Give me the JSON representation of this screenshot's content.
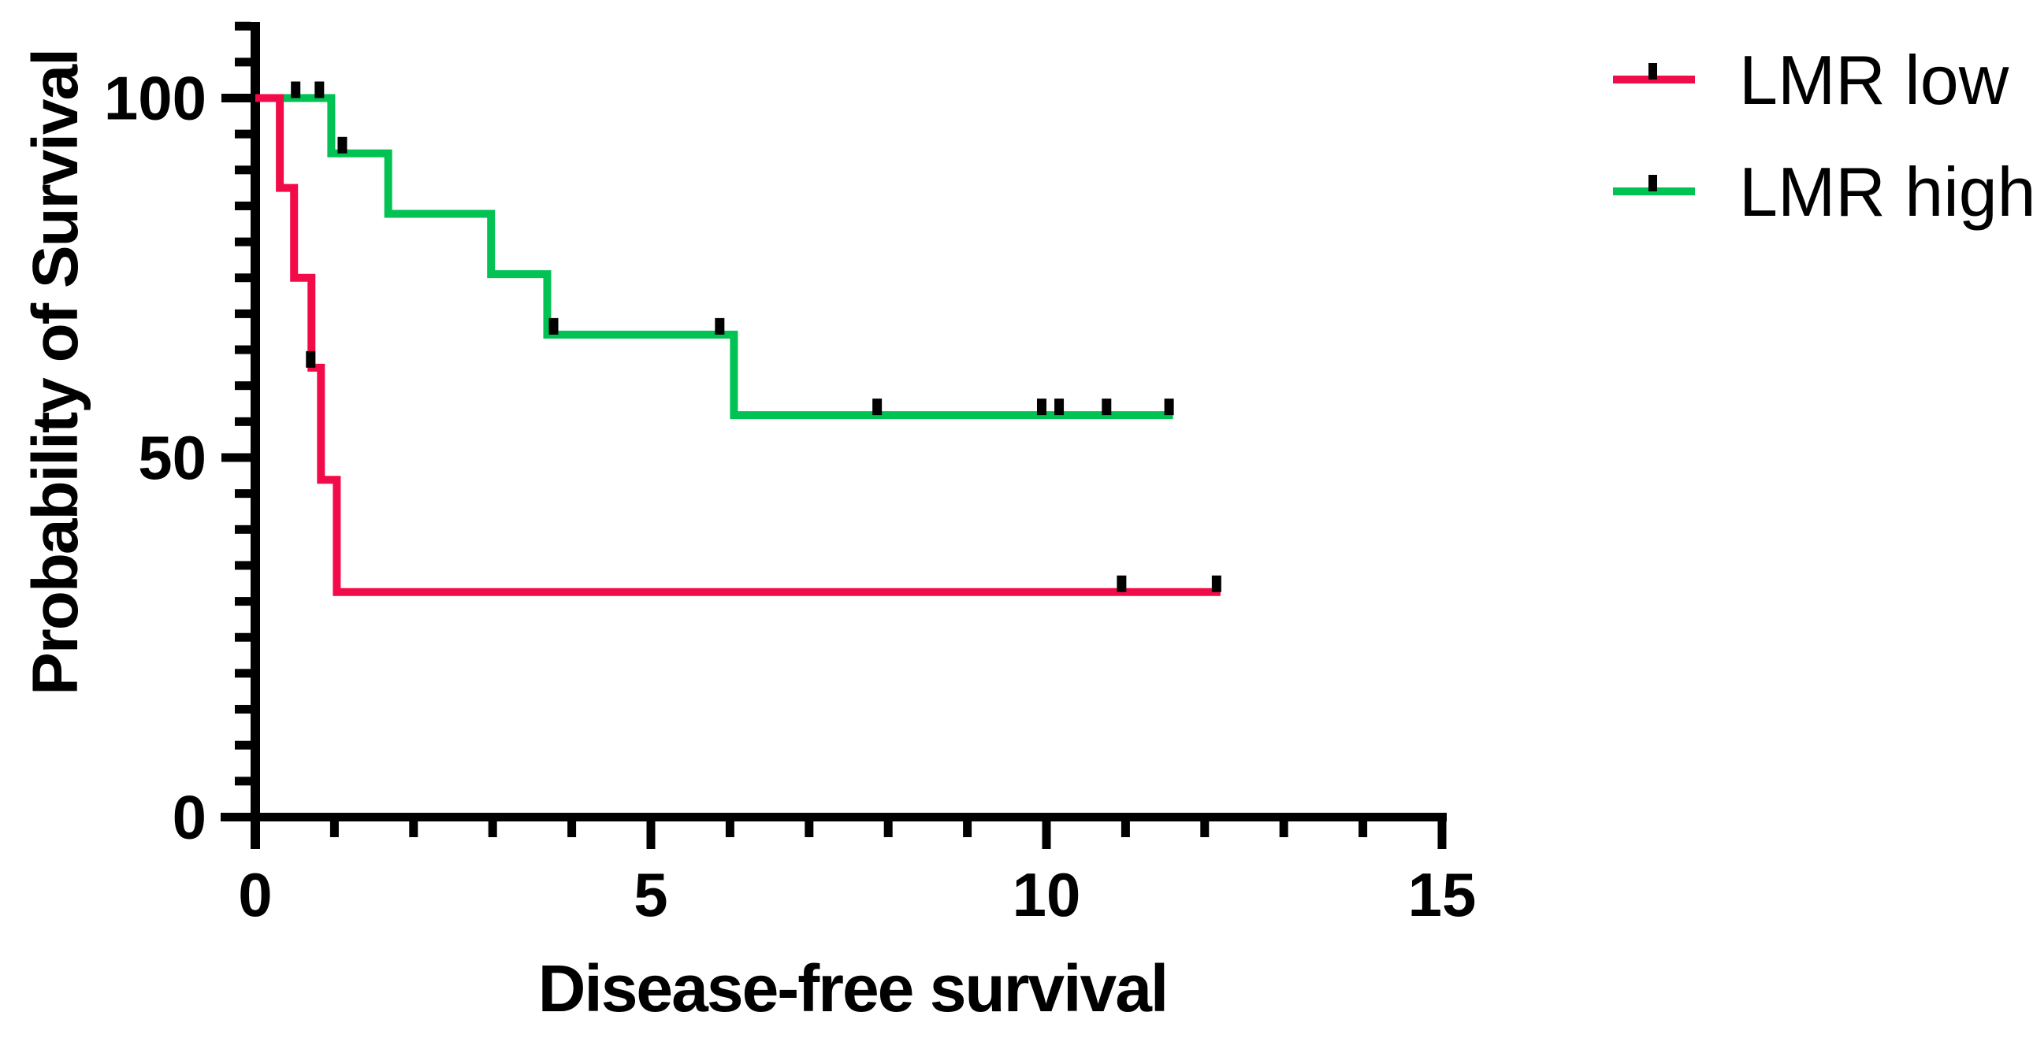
{
  "figure": {
    "background": "#ffffff",
    "y_axis_title": "Probability of Survival",
    "x_axis_title": "Disease-free survival",
    "axis_color": "#000000",
    "censor_mark_color": "#000000",
    "legend": {
      "position": "top-right",
      "items": [
        {
          "label": "LMR low",
          "color": "#f20b49",
          "symbol": "line-with-censor-tick"
        },
        {
          "label": "LMR high",
          "color": "#02c253",
          "symbol": "line-with-censor-tick"
        }
      ]
    }
  },
  "chart_data": {
    "type": "line",
    "subtype": "kaplan-meier-step",
    "title": "",
    "xlabel": "Disease-free survival",
    "ylabel": "Probability of Survival",
    "xlim": [
      0,
      15.1
    ],
    "ylim": [
      0,
      110
    ],
    "x_major_ticks": [
      0,
      5,
      10,
      15
    ],
    "x_minor_tick_interval": 1,
    "y_major_ticks": [
      0,
      50,
      100
    ],
    "y_minor_tick_interval": 5,
    "grid": false,
    "legend_position": "top-right",
    "series": [
      {
        "name": "LMR low",
        "color": "#f20b49",
        "start": {
          "t": 0,
          "p": 100
        },
        "steps": [
          {
            "t": 0.31,
            "p": 87.5
          },
          {
            "t": 0.49,
            "p": 75.0
          },
          {
            "t": 0.71,
            "p": 62.5
          },
          {
            "t": 0.83,
            "p": 46.9
          },
          {
            "t": 1.03,
            "p": 31.3
          }
        ],
        "end_t": 12.2,
        "censor_marks": [
          {
            "t": 0.7,
            "p": 62.5
          },
          {
            "t": 10.95,
            "p": 31.3
          },
          {
            "t": 12.15,
            "p": 31.3
          }
        ]
      },
      {
        "name": "LMR high",
        "color": "#02c253",
        "start": {
          "t": 0,
          "p": 100
        },
        "steps": [
          {
            "t": 0.96,
            "p": 92.3
          },
          {
            "t": 1.68,
            "p": 83.9
          },
          {
            "t": 2.98,
            "p": 75.5
          },
          {
            "t": 3.69,
            "p": 67.1
          },
          {
            "t": 6.05,
            "p": 55.9
          }
        ],
        "end_t": 11.6,
        "censor_marks": [
          {
            "t": 0.51,
            "p": 100
          },
          {
            "t": 0.81,
            "p": 100
          },
          {
            "t": 1.1,
            "p": 92.3
          },
          {
            "t": 3.77,
            "p": 67.1
          },
          {
            "t": 5.87,
            "p": 67.1
          },
          {
            "t": 7.86,
            "p": 55.9
          },
          {
            "t": 9.94,
            "p": 55.9
          },
          {
            "t": 10.16,
            "p": 55.9
          },
          {
            "t": 10.76,
            "p": 55.9
          },
          {
            "t": 11.55,
            "p": 55.9
          }
        ]
      }
    ]
  }
}
